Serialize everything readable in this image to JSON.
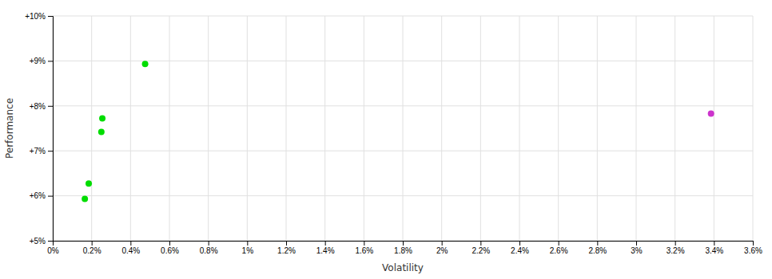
{
  "chart_data": {
    "type": "scatter",
    "xlabel": "Volatility",
    "ylabel": "Performance",
    "xlim": [
      0.0,
      0.036
    ],
    "ylim": [
      0.05,
      0.1
    ],
    "xticks": [
      {
        "value": 0.0,
        "label": "0%"
      },
      {
        "value": 0.002,
        "label": "0.2%"
      },
      {
        "value": 0.004,
        "label": "0.4%"
      },
      {
        "value": 0.006,
        "label": "0.6%"
      },
      {
        "value": 0.008,
        "label": "0.8%"
      },
      {
        "value": 0.01,
        "label": "1%"
      },
      {
        "value": 0.012,
        "label": "1.2%"
      },
      {
        "value": 0.014,
        "label": "1.4%"
      },
      {
        "value": 0.016,
        "label": "1.6%"
      },
      {
        "value": 0.018,
        "label": "1.8%"
      },
      {
        "value": 0.02,
        "label": "2%"
      },
      {
        "value": 0.022,
        "label": "2.2%"
      },
      {
        "value": 0.024,
        "label": "2.4%"
      },
      {
        "value": 0.026,
        "label": "2.6%"
      },
      {
        "value": 0.028,
        "label": "2.8%"
      },
      {
        "value": 0.03,
        "label": "3%"
      },
      {
        "value": 0.032,
        "label": "3.2%"
      },
      {
        "value": 0.034,
        "label": "3.4%"
      },
      {
        "value": 0.036,
        "label": "3.6%"
      }
    ],
    "yticks": [
      {
        "value": 0.05,
        "label": "+5%"
      },
      {
        "value": 0.06,
        "label": "+6%"
      },
      {
        "value": 0.07,
        "label": "+7%"
      },
      {
        "value": 0.08,
        "label": "+8%"
      },
      {
        "value": 0.09,
        "label": "+9%"
      },
      {
        "value": 0.1,
        "label": "+10%"
      }
    ],
    "grid": true,
    "series": [
      {
        "color": "#00dd00",
        "x": [
          0.00185,
          0.00165,
          0.00255,
          0.0025,
          0.00475
        ],
        "values": [
          0.0627,
          0.0593,
          0.0772,
          0.0742,
          0.0893
        ]
      },
      {
        "color": "#cc33cc",
        "x": [
          0.03385
        ],
        "values": [
          0.0783
        ]
      }
    ]
  }
}
